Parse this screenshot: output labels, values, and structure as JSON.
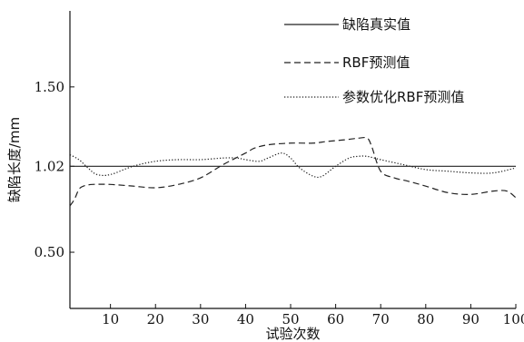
{
  "chart_data": {
    "type": "line",
    "xlabel": "试验次数",
    "ylabel": "缺陷长度/mm",
    "xlim": [
      1,
      100
    ],
    "ylim": [
      0.16,
      1.96
    ],
    "xticks": [
      10,
      20,
      30,
      40,
      50,
      60,
      70,
      80,
      90,
      100
    ],
    "yticks": [
      0.5,
      1.02,
      1.5
    ],
    "ytick_labels": [
      "0.50",
      "1.02",
      "1.50"
    ],
    "grid": false,
    "legend_position": "top-right",
    "series": [
      {
        "name": "缺陷真实值",
        "style": "solid",
        "color": "#222222",
        "x": [
          1,
          100
        ],
        "y": [
          1.02,
          1.02
        ]
      },
      {
        "name": "RBF预测值",
        "style": "dashed",
        "color": "#222222",
        "x": [
          1,
          2,
          3,
          4,
          6,
          10,
          15,
          20,
          25,
          30,
          35,
          40,
          42,
          45,
          50,
          55,
          58,
          62,
          65,
          67,
          68,
          70,
          73,
          76,
          80,
          85,
          90,
          95,
          98,
          100
        ],
        "y": [
          0.78,
          0.82,
          0.88,
          0.9,
          0.91,
          0.91,
          0.9,
          0.89,
          0.91,
          0.95,
          1.03,
          1.1,
          1.13,
          1.15,
          1.16,
          1.16,
          1.17,
          1.18,
          1.19,
          1.19,
          1.14,
          0.99,
          0.95,
          0.93,
          0.9,
          0.86,
          0.85,
          0.87,
          0.87,
          0.83
        ]
      },
      {
        "name": "参数优化RBF预测值",
        "style": "dotted",
        "color": "#222222",
        "x": [
          1,
          3,
          5,
          7,
          10,
          15,
          20,
          25,
          30,
          35,
          38,
          40,
          43,
          45,
          48,
          50,
          52,
          55,
          57,
          60,
          63,
          65,
          67,
          70,
          75,
          80,
          85,
          90,
          95,
          100
        ],
        "y": [
          1.09,
          1.06,
          1.01,
          0.97,
          0.97,
          1.02,
          1.05,
          1.06,
          1.06,
          1.07,
          1.07,
          1.06,
          1.05,
          1.07,
          1.1,
          1.07,
          1.01,
          0.96,
          0.96,
          1.02,
          1.07,
          1.08,
          1.08,
          1.06,
          1.03,
          1.0,
          0.99,
          0.98,
          0.98,
          1.01
        ]
      }
    ]
  }
}
